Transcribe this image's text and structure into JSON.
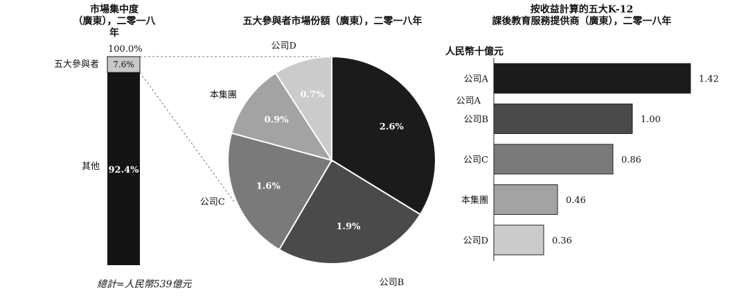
{
  "panel1": {
    "title_line1": "市場集中度",
    "title_line2": "（廣東），二零一八年",
    "top_label": "100.0%",
    "five_label": "五大參與者",
    "five_value": 7.6,
    "five_value_text": "7.6%",
    "others_label": "其他",
    "others_value": 92.4,
    "others_value_text": "92.4%",
    "footnote": "總計=人民幣539億元"
  },
  "panel2": {
    "title": "五大參與者市場份額（廣東），二零一八年"
  },
  "panel3": {
    "title_line1": "按收益計算的五大K-12",
    "title_line2": "課後教育服務提供商（廣東），二零一八年",
    "unit_label": "人民幣十億元"
  },
  "chart_data": [
    {
      "type": "bar",
      "title": "市場集中度（廣東），二零一八年",
      "categories": [
        "五大參與者",
        "其他"
      ],
      "values": [
        7.6,
        92.4
      ],
      "total_label": "100.0%",
      "colors": [
        "#c8c8c8",
        "#141414"
      ]
    },
    {
      "type": "pie",
      "title": "五大參與者市場份額（廣東），二零一八年",
      "categories": [
        "公司A",
        "公司B",
        "公司C",
        "本集團",
        "公司D"
      ],
      "values": [
        2.6,
        1.9,
        1.6,
        0.9,
        0.7
      ],
      "value_labels": [
        "2.6%",
        "1.9%",
        "1.6%",
        "0.9%",
        "0.7%"
      ],
      "colors": [
        "#1b1b1b",
        "#4a4a4a",
        "#7a7a7a",
        "#a3a3a3",
        "#cbcbcb"
      ]
    },
    {
      "type": "bar",
      "orientation": "horizontal",
      "title": "按收益計算的五大K-12課後教育服務提供商（廣東），二零一八年",
      "ylabel": "人民幣十億元",
      "categories": [
        "公司A",
        "公司B",
        "公司C",
        "本集團",
        "公司D"
      ],
      "values": [
        1.42,
        1.0,
        0.86,
        0.46,
        0.36
      ],
      "value_labels": [
        "1.42",
        "1.00",
        "0.86",
        "0.46",
        "0.36"
      ],
      "colors": [
        "#1b1b1b",
        "#4a4a4a",
        "#7a7a7a",
        "#a3a3a3",
        "#cbcbcb"
      ]
    }
  ]
}
